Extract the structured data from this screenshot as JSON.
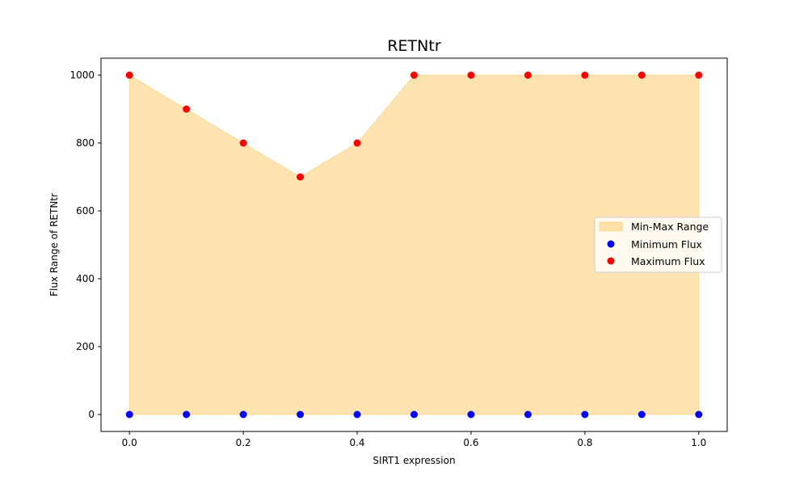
{
  "chart_data": {
    "type": "area",
    "title": "RETNtr",
    "xlabel": "SIRT1 expression",
    "ylabel": "Flux Range of RETNtr",
    "xlim": [
      -0.05,
      1.05
    ],
    "ylim": [
      -50,
      1050
    ],
    "x_ticks": [
      "0.0",
      "0.2",
      "0.4",
      "0.6",
      "0.8",
      "1.0"
    ],
    "y_ticks": [
      "0",
      "200",
      "400",
      "600",
      "800",
      "1000"
    ],
    "x": [
      0.0,
      0.1,
      0.2,
      0.3,
      0.4,
      0.5,
      0.6,
      0.7,
      0.8,
      0.9,
      1.0
    ],
    "series": [
      {
        "name": "Minimum Flux",
        "kind": "scatter",
        "color": "#0000ff",
        "values": [
          0,
          0,
          0,
          0,
          0,
          0,
          0,
          0,
          0,
          0,
          0
        ]
      },
      {
        "name": "Maximum Flux",
        "kind": "scatter",
        "color": "#ff0000",
        "values": [
          1000,
          900,
          800,
          700,
          800,
          1000,
          1000,
          1000,
          1000,
          1000,
          1000
        ]
      }
    ],
    "fill": {
      "name": "Min-Max Range",
      "color": "#ffa500",
      "opacity": 0.3
    },
    "legend": {
      "placement": "center-right",
      "entries": [
        "Min-Max Range",
        "Minimum Flux",
        "Maximum Flux"
      ]
    },
    "grid": false
  }
}
